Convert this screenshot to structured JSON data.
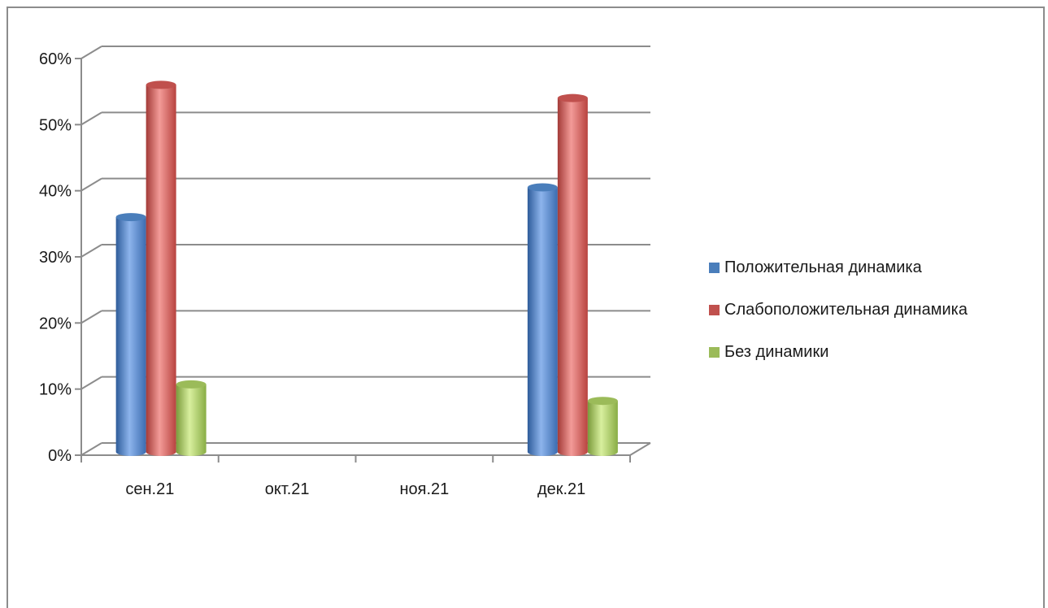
{
  "chart_data": {
    "type": "bar",
    "title": "",
    "xlabel": "",
    "ylabel": "",
    "categories": [
      "сен.21",
      "окт.21",
      "ноя.21",
      "дек.21"
    ],
    "series": [
      {
        "name": "Положительная динамика",
        "color": "#4a7ebb",
        "values": [
          35,
          0,
          0,
          39.5
        ]
      },
      {
        "name": "Слабоположительная динамика",
        "color": "#c0504d",
        "values": [
          55,
          0,
          0,
          53
        ]
      },
      {
        "name": "Без динамики",
        "color": "#9bbb59",
        "values": [
          9.7,
          0,
          0,
          7.2
        ]
      }
    ],
    "ylim": [
      0,
      60
    ],
    "yticks": [
      "0%",
      "10%",
      "20%",
      "30%",
      "40%",
      "50%",
      "60%"
    ],
    "grid": true,
    "legend_position": "right"
  }
}
